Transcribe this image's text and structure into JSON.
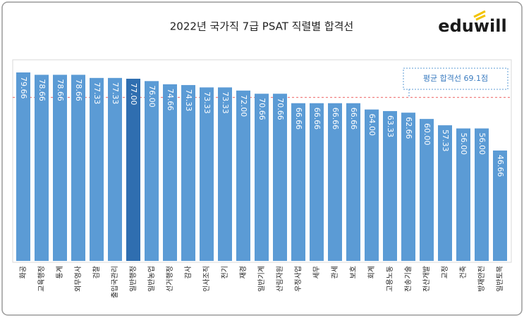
{
  "chart_data": {
    "type": "bar",
    "title": "2022년 국가직 7급 PSAT 직렬별 합격선",
    "logo": "eduwill",
    "categories": [
      "화공",
      "교육행정",
      "통계",
      "외무영사",
      "검찰",
      "출입국관리",
      "일반행정",
      "일반농업",
      "선거행정",
      "감사",
      "인사조직",
      "전기",
      "재경",
      "일반기계",
      "산림자원",
      "우정사업",
      "세무",
      "관세",
      "보호",
      "회계",
      "고용노동",
      "전송기술",
      "전산개발",
      "교정",
      "건축",
      "방재안전",
      "일반토목"
    ],
    "values": [
      79.66,
      78.66,
      78.66,
      78.66,
      77.33,
      77.33,
      77.0,
      76.0,
      74.66,
      74.33,
      73.33,
      73.33,
      72.0,
      70.66,
      70.66,
      66.66,
      66.66,
      66.66,
      66.66,
      64.0,
      63.33,
      62.66,
      60.0,
      57.33,
      56.0,
      56.0,
      46.66
    ],
    "value_labels": [
      "79.66",
      "78.66",
      "78.66",
      "78.66",
      "77.33",
      "77.33",
      "77.00",
      "76.00",
      "74.66",
      "74.33",
      "73.33",
      "73.33",
      "72.00",
      "70.66",
      "70.66",
      "66.66",
      "66.66",
      "66.66",
      "66.66",
      "64.00",
      "63.33",
      "62.66",
      "60.00",
      "57.33",
      "56.00",
      "56.00",
      "46.66"
    ],
    "colors": [
      "#5b9bd5",
      "#5b9bd5",
      "#5b9bd5",
      "#5b9bd5",
      "#5b9bd5",
      "#5b9bd5",
      "#2f6eb0",
      "#5b9bd5",
      "#5b9bd5",
      "#5b9bd5",
      "#5b9bd5",
      "#5b9bd5",
      "#5b9bd5",
      "#5b9bd5",
      "#5b9bd5",
      "#5b9bd5",
      "#5b9bd5",
      "#5b9bd5",
      "#5b9bd5",
      "#5b9bd5",
      "#5b9bd5",
      "#5b9bd5",
      "#5b9bd5",
      "#5b9bd5",
      "#5b9bd5",
      "#5b9bd5",
      "#5b9bd5"
    ],
    "average": 69.1,
    "average_label": "평균 합격선 69.1점",
    "average_color": "#f08080"
  }
}
